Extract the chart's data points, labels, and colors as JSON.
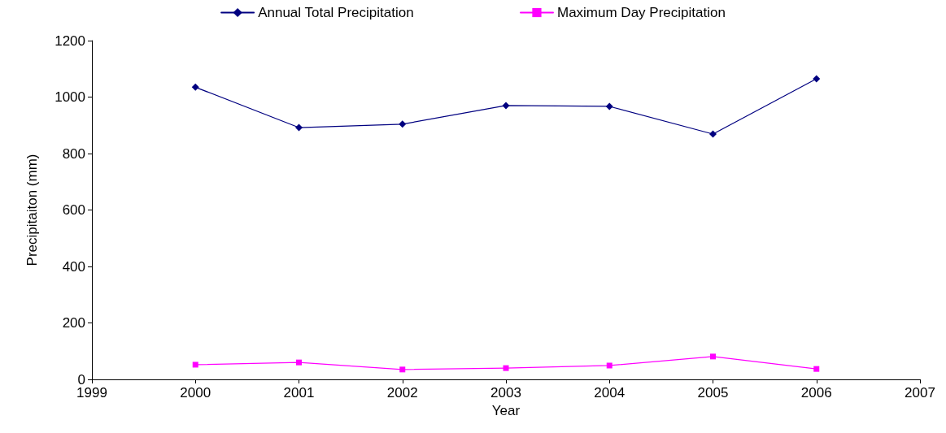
{
  "chart_data": {
    "type": "line",
    "xlabel": "Year",
    "ylabel": "Precipitaiton (mm)",
    "x": [
      2000,
      2001,
      2002,
      2003,
      2004,
      2005,
      2006
    ],
    "series": [
      {
        "name": "Annual Total Precipitation",
        "color": "#000080",
        "marker": "diamond",
        "values": [
          1035,
          892,
          904,
          970,
          967,
          869,
          1065
        ]
      },
      {
        "name": "Maximum Day Precipitation",
        "color": "#ff00ff",
        "marker": "square",
        "values": [
          52,
          60,
          35,
          40,
          49,
          81,
          37
        ]
      }
    ],
    "xlim": [
      1999,
      2007
    ],
    "xticks": [
      1999,
      2000,
      2001,
      2002,
      2003,
      2004,
      2005,
      2006,
      2007
    ],
    "ylim": [
      0,
      1200
    ],
    "yticks": [
      0,
      200,
      400,
      600,
      800,
      1000,
      1200
    ],
    "grid": false,
    "legend": "top",
    "line_style": "solid"
  }
}
